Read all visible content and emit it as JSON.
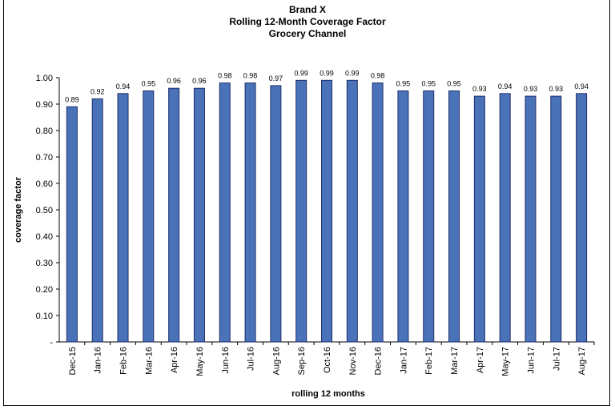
{
  "chart_data": {
    "type": "bar",
    "title": "Brand X",
    "subtitle_lines": [
      "Rolling 12-Month Coverage Factor",
      "Grocery Channel"
    ],
    "xlabel": "rolling 12 months",
    "ylabel": "coverage factor",
    "ylim": [
      0,
      1.0
    ],
    "yticks": [
      "-",
      "0.10",
      "0.20",
      "0.30",
      "0.40",
      "0.50",
      "0.60",
      "0.70",
      "0.80",
      "0.90",
      "1.00"
    ],
    "categories": [
      "Dec-15",
      "Jan-16",
      "Feb-16",
      "Mar-16",
      "Apr-16",
      "May-16",
      "Jun-16",
      "Jul-16",
      "Aug-16",
      "Sep-16",
      "Oct-16",
      "Nov-16",
      "Dec-16",
      "Jan-17",
      "Feb-17",
      "Mar-17",
      "Apr-17",
      "May-17",
      "Jun-17",
      "Jul-17",
      "Aug-17"
    ],
    "values": [
      0.89,
      0.92,
      0.94,
      0.95,
      0.96,
      0.96,
      0.98,
      0.98,
      0.97,
      0.99,
      0.99,
      0.99,
      0.98,
      0.95,
      0.95,
      0.95,
      0.93,
      0.94,
      0.93,
      0.93,
      0.94
    ],
    "value_labels": [
      "0.89",
      "0.92",
      "0.94",
      "0.95",
      "0.96",
      "0.96",
      "0.98",
      "0.98",
      "0.97",
      "0.99",
      "0.99",
      "0.99",
      "0.98",
      "0.95",
      "0.95",
      "0.95",
      "0.93",
      "0.94",
      "0.93",
      "0.93",
      "0.94"
    ],
    "bar_color": "#4a72b8",
    "bar_edge_color": "#1f2f6b",
    "grid": false,
    "legend": "none"
  }
}
